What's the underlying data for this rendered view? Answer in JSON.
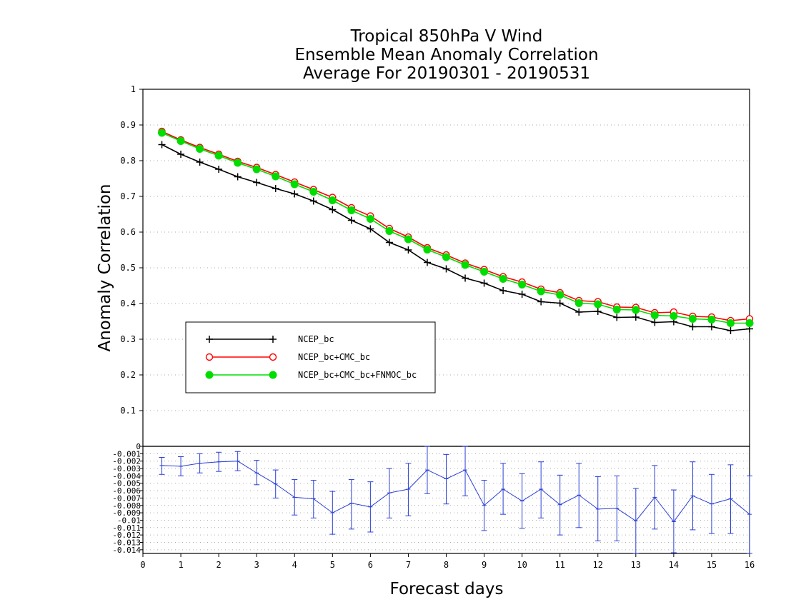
{
  "chart_data": [
    {
      "type": "line",
      "title": [
        "Tropical 850hPa V Wind",
        "Ensemble Mean Anomaly Correlation",
        "Average For 20190301 - 20190531"
      ],
      "xlabel": "Forecast days",
      "ylabel": "Anomaly Correlation",
      "xlim": [
        0,
        16
      ],
      "ylim": [
        0,
        1
      ],
      "x_ticks": [
        "0",
        "1",
        "2",
        "3",
        "4",
        "5",
        "6",
        "7",
        "8",
        "9",
        "10",
        "11",
        "12",
        "13",
        "14",
        "15",
        "16"
      ],
      "y_ticks": [
        "0.1",
        "0.2",
        "0.3",
        "0.4",
        "0.5",
        "0.6",
        "0.7",
        "0.8",
        "0.9",
        "1"
      ],
      "grid": true,
      "legend_position": "lower-left",
      "x": [
        0.5,
        1,
        1.5,
        2,
        2.5,
        3,
        3.5,
        4,
        4.5,
        5,
        5.5,
        6,
        6.5,
        7,
        7.5,
        8,
        8.5,
        9,
        9.5,
        10,
        10.5,
        11,
        11.5,
        12,
        12.5,
        13,
        13.5,
        14,
        14.5,
        15,
        15.5,
        16
      ],
      "series": [
        {
          "name": "NCEP_bc",
          "color": "#000000",
          "marker": "plus",
          "values": [
            0.845,
            0.818,
            0.796,
            0.776,
            0.755,
            0.739,
            0.722,
            0.707,
            0.687,
            0.663,
            0.633,
            0.609,
            0.571,
            0.55,
            0.515,
            0.497,
            0.471,
            0.457,
            0.436,
            0.426,
            0.405,
            0.401,
            0.376,
            0.378,
            0.361,
            0.362,
            0.347,
            0.349,
            0.335,
            0.335,
            0.324,
            0.329
          ]
        },
        {
          "name": "NCEP_bc+CMC_bc",
          "color": "#ff0000",
          "marker": "open-circle",
          "values": [
            0.882,
            0.858,
            0.837,
            0.818,
            0.798,
            0.781,
            0.761,
            0.74,
            0.719,
            0.697,
            0.668,
            0.645,
            0.61,
            0.586,
            0.556,
            0.536,
            0.513,
            0.495,
            0.475,
            0.46,
            0.44,
            0.43,
            0.408,
            0.405,
            0.39,
            0.389,
            0.374,
            0.376,
            0.364,
            0.362,
            0.352,
            0.357
          ]
        },
        {
          "name": "NCEP_bc+CMC_bc+FNMOC_bc",
          "color": "#00dd00",
          "marker": "filled-circle",
          "values": [
            0.878,
            0.855,
            0.833,
            0.814,
            0.794,
            0.776,
            0.756,
            0.734,
            0.713,
            0.689,
            0.661,
            0.637,
            0.603,
            0.58,
            0.551,
            0.53,
            0.508,
            0.489,
            0.469,
            0.453,
            0.434,
            0.424,
            0.401,
            0.398,
            0.383,
            0.382,
            0.367,
            0.365,
            0.357,
            0.355,
            0.345,
            0.345
          ]
        }
      ]
    },
    {
      "type": "line",
      "xlabel": "Forecast days",
      "xlim": [
        0,
        16
      ],
      "ylim": [
        -0.0145,
        0
      ],
      "y_ticks": [
        "0",
        "-0.001",
        "-0.002",
        "-0.003",
        "-0.004",
        "-0.005",
        "-0.006",
        "-0.007",
        "-0.008",
        "-0.009",
        "-0.01",
        "-0.011",
        "-0.012",
        "-0.013",
        "-0.014"
      ],
      "grid": true,
      "error_bars": true,
      "color": "#2a3fd6",
      "x": [
        0.5,
        1,
        1.5,
        2,
        2.5,
        3,
        3.5,
        4,
        4.5,
        5,
        5.5,
        6,
        6.5,
        7,
        7.5,
        8,
        8.5,
        9,
        9.5,
        10,
        10.5,
        11,
        11.5,
        12,
        12.5,
        13,
        13.5,
        14,
        14.5,
        15,
        15.5,
        16
      ],
      "values": [
        -0.0026,
        -0.0027,
        -0.0023,
        -0.0021,
        -0.002,
        -0.0036,
        -0.0051,
        -0.0069,
        -0.0071,
        -0.009,
        -0.0077,
        -0.0082,
        -0.0063,
        -0.0058,
        -0.0032,
        -0.0044,
        -0.0032,
        -0.008,
        -0.0058,
        -0.0074,
        -0.0058,
        -0.0079,
        -0.0066,
        -0.0085,
        -0.0084,
        -0.0101,
        -0.0069,
        -0.0102,
        -0.0067,
        -0.0078,
        -0.0071,
        -0.0092
      ],
      "lower": [
        -0.0038,
        -0.004,
        -0.0036,
        -0.0034,
        -0.0033,
        -0.0052,
        -0.007,
        -0.0093,
        -0.0097,
        -0.0119,
        -0.0112,
        -0.0116,
        -0.0097,
        -0.0094,
        -0.0064,
        -0.0078,
        -0.0067,
        -0.0114,
        -0.0092,
        -0.0111,
        -0.0097,
        -0.012,
        -0.011,
        -0.0128,
        -0.0128,
        -0.0145,
        -0.0112,
        -0.0144,
        -0.0113,
        -0.0118,
        -0.0118,
        -0.0145
      ],
      "upper": [
        -0.0015,
        -0.0014,
        -0.001,
        -0.0008,
        -0.0007,
        -0.0019,
        -0.0032,
        -0.0045,
        -0.0046,
        -0.0061,
        -0.0045,
        -0.0048,
        -0.003,
        -0.0023,
        0.0,
        -0.0011,
        0.0,
        -0.0046,
        -0.0023,
        -0.0037,
        -0.0021,
        -0.0039,
        -0.0023,
        -0.0041,
        -0.004,
        -0.0057,
        -0.0026,
        -0.0059,
        -0.0021,
        -0.0038,
        -0.0025,
        -0.004
      ]
    }
  ]
}
